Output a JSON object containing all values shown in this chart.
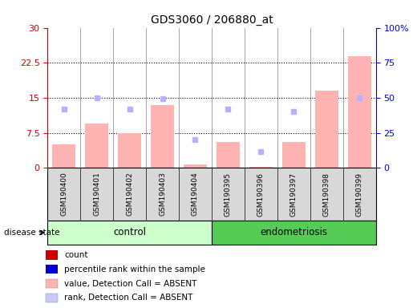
{
  "title": "GDS3060 / 206880_at",
  "samples": [
    "GSM190400",
    "GSM190401",
    "GSM190402",
    "GSM190403",
    "GSM190404",
    "GSM190395",
    "GSM190396",
    "GSM190397",
    "GSM190398",
    "GSM190399"
  ],
  "n_control": 5,
  "n_endometriosis": 5,
  "bar_values": [
    5.0,
    9.5,
    7.5,
    13.5,
    0.8,
    5.5,
    0.3,
    5.5,
    16.5,
    24.0
  ],
  "dot_values": [
    12.5,
    15.0,
    12.5,
    14.8,
    6.0,
    12.5,
    3.5,
    12.0,
    null,
    15.0
  ],
  "ylim_left": [
    0,
    30
  ],
  "ylim_right": [
    0,
    100
  ],
  "yticks_left": [
    0,
    7.5,
    15,
    22.5,
    30
  ],
  "yticks_left_labels": [
    "0",
    "7.5",
    "15",
    "22.5",
    "30"
  ],
  "yticks_right": [
    0,
    25,
    50,
    75,
    100
  ],
  "yticks_right_labels": [
    "0",
    "25",
    "50",
    "75",
    "100%"
  ],
  "bar_color": "#ffb3b3",
  "dot_color": "#b3b3ff",
  "control_bg": "#ccffcc",
  "endometriosis_bg": "#55cc55",
  "sample_box_bg": "#d8d8d8",
  "plot_bg": "#ffffff",
  "left_axis_color": "#cc0000",
  "right_axis_color": "#0000cc",
  "legend_items": [
    {
      "label": "count",
      "color": "#cc0000"
    },
    {
      "label": "percentile rank within the sample",
      "color": "#0000cc"
    },
    {
      "label": "value, Detection Call = ABSENT",
      "color": "#ffb3b3"
    },
    {
      "label": "rank, Detection Call = ABSENT",
      "color": "#c8c8ff"
    }
  ],
  "disease_state_label": "disease state",
  "control_label": "control",
  "endometriosis_label": "endometriosis"
}
